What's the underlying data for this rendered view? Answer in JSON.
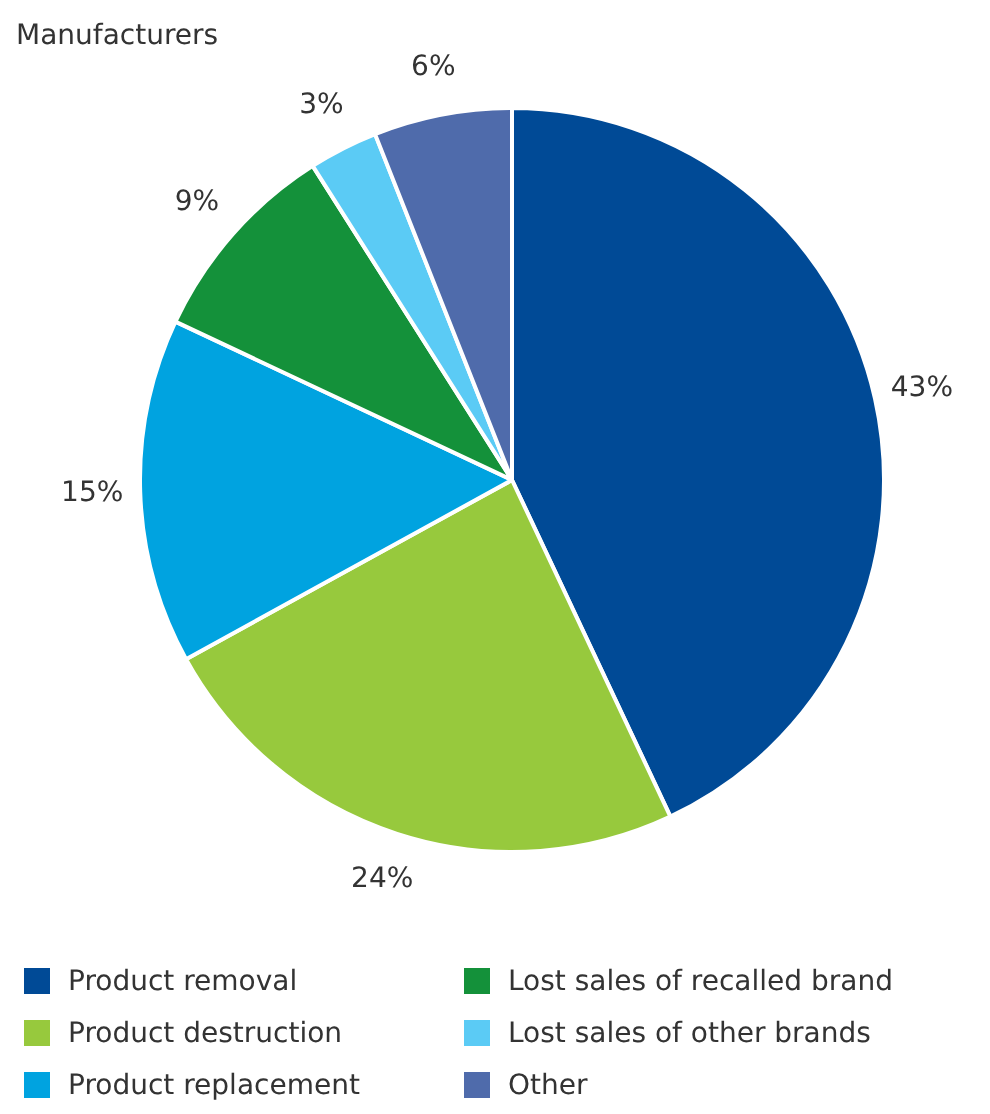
{
  "chart_data": {
    "type": "pie",
    "title": "Manufacturers",
    "categories": [
      "Product removal",
      "Product destruction",
      "Product replacement",
      "Lost sales of recalled brand",
      "Lost sales of other brands",
      "Other"
    ],
    "values": [
      43,
      24,
      15,
      9,
      3,
      6
    ],
    "colors": [
      "#004a96",
      "#97c93d",
      "#00a3e0",
      "#14913a",
      "#5bcbf5",
      "#4f6bab"
    ],
    "value_labels": [
      "43%",
      "24%",
      "15%",
      "9%",
      "3%",
      "6%"
    ],
    "legend": "bottom"
  }
}
